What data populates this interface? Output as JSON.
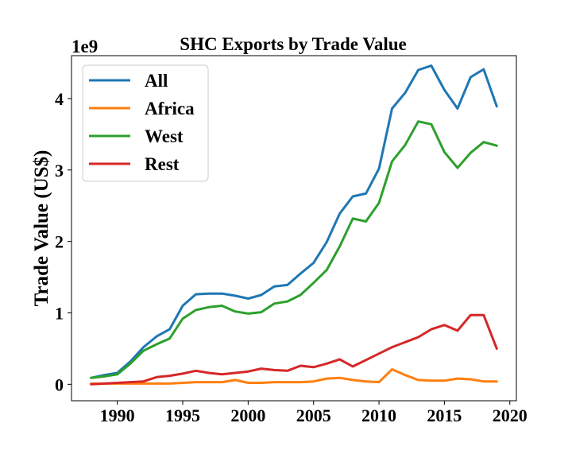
{
  "chart_data": {
    "type": "line",
    "title": "SHC Exports by Trade Value",
    "xlabel": "",
    "ylabel": "Trade Value (US$)",
    "y_offset_label": "1e9",
    "xlim": [
      1986.5,
      2020.5
    ],
    "ylim": [
      -0.23,
      4.6
    ],
    "x_ticks": [
      1990,
      1995,
      2000,
      2005,
      2010,
      2015,
      2020
    ],
    "y_ticks": [
      0,
      1,
      2,
      3,
      4
    ],
    "grid": false,
    "legend_position": "top-left",
    "x": [
      1988,
      1989,
      1990,
      1991,
      1992,
      1993,
      1994,
      1995,
      1996,
      1997,
      1998,
      1999,
      2000,
      2001,
      2002,
      2003,
      2004,
      2005,
      2006,
      2007,
      2008,
      2009,
      2010,
      2011,
      2012,
      2013,
      2014,
      2015,
      2016,
      2017,
      2018,
      2019
    ],
    "series": [
      {
        "name": "All",
        "color": "#1f77b4",
        "values": [
          0.09,
          0.13,
          0.16,
          0.32,
          0.52,
          0.67,
          0.77,
          1.1,
          1.26,
          1.27,
          1.27,
          1.24,
          1.2,
          1.25,
          1.37,
          1.39,
          1.55,
          1.7,
          1.99,
          2.39,
          2.63,
          2.67,
          3.02,
          3.86,
          4.08,
          4.4,
          4.46,
          4.12,
          3.86,
          4.3,
          4.41,
          3.89
        ]
      },
      {
        "name": "Africa",
        "color": "#ff7f0e",
        "values": [
          0.01,
          0.01,
          0.01,
          0.01,
          0.01,
          0.01,
          0.01,
          0.02,
          0.03,
          0.03,
          0.03,
          0.06,
          0.02,
          0.02,
          0.03,
          0.03,
          0.03,
          0.04,
          0.08,
          0.09,
          0.06,
          0.04,
          0.03,
          0.21,
          0.13,
          0.06,
          0.05,
          0.05,
          0.08,
          0.07,
          0.04,
          0.04
        ]
      },
      {
        "name": "West",
        "color": "#2ca02c",
        "values": [
          0.09,
          0.11,
          0.14,
          0.29,
          0.47,
          0.56,
          0.64,
          0.92,
          1.04,
          1.08,
          1.1,
          1.02,
          0.99,
          1.01,
          1.13,
          1.16,
          1.25,
          1.42,
          1.6,
          1.93,
          2.32,
          2.28,
          2.54,
          3.12,
          3.35,
          3.68,
          3.64,
          3.25,
          3.03,
          3.24,
          3.39,
          3.34
        ]
      },
      {
        "name": "Rest",
        "color": "#d62728",
        "values": [
          0.0,
          0.01,
          0.02,
          0.03,
          0.04,
          0.1,
          0.12,
          0.15,
          0.19,
          0.16,
          0.14,
          0.16,
          0.18,
          0.22,
          0.2,
          0.19,
          0.26,
          0.24,
          0.29,
          0.35,
          0.25,
          0.34,
          0.43,
          0.52,
          0.59,
          0.66,
          0.77,
          0.83,
          0.75,
          0.97,
          0.97,
          0.5
        ]
      }
    ]
  }
}
